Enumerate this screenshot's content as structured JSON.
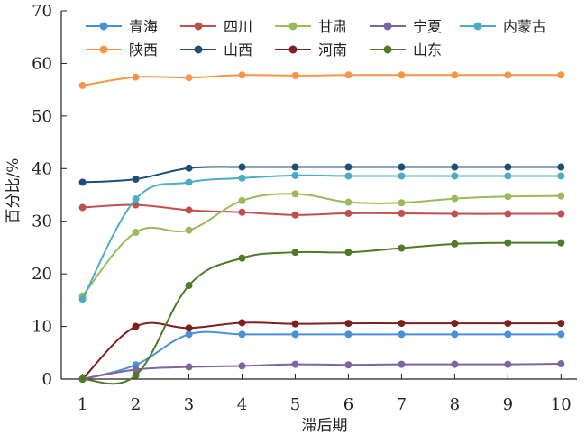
{
  "chart_data": {
    "type": "line",
    "title": "",
    "xlabel": "滞后期",
    "ylabel": "百分比/%",
    "x": [
      1,
      2,
      3,
      4,
      5,
      6,
      7,
      8,
      9,
      10
    ],
    "xlim": [
      0.6,
      10.3
    ],
    "ylim": [
      0,
      70
    ],
    "yticks": [
      0,
      10,
      20,
      30,
      40,
      50,
      60,
      70
    ],
    "xticks": [
      1,
      2,
      3,
      4,
      5,
      6,
      7,
      8,
      9,
      10
    ],
    "grid": false,
    "legend_position": "top",
    "smooth": true,
    "series": [
      {
        "name": "青海",
        "color": "#4a90d9",
        "values": [
          0,
          2.7,
          8.5,
          8.5,
          8.5,
          8.5,
          8.5,
          8.5,
          8.5,
          8.5
        ]
      },
      {
        "name": "四川",
        "color": "#c0504d",
        "values": [
          32.6,
          33.1,
          32.1,
          31.7,
          31.2,
          31.5,
          31.5,
          31.4,
          31.4,
          31.4
        ]
      },
      {
        "name": "甘肃",
        "color": "#9bbb59",
        "values": [
          15.8,
          27.9,
          28.3,
          33.9,
          35.2,
          33.6,
          33.5,
          34.3,
          34.7,
          34.8
        ]
      },
      {
        "name": "宁夏",
        "color": "#8064a2",
        "values": [
          0,
          1.8,
          2.3,
          2.5,
          2.8,
          2.7,
          2.8,
          2.8,
          2.8,
          2.9
        ]
      },
      {
        "name": "内蒙古",
        "color": "#4bacc6",
        "values": [
          15.2,
          34.2,
          37.4,
          38.2,
          38.7,
          38.6,
          38.6,
          38.6,
          38.6,
          38.6
        ]
      },
      {
        "name": "陕西",
        "color": "#f79646",
        "values": [
          55.8,
          57.4,
          57.3,
          57.8,
          57.7,
          57.8,
          57.8,
          57.8,
          57.8,
          57.8
        ]
      },
      {
        "name": "山西",
        "color": "#1f4e79",
        "values": [
          37.4,
          38.0,
          40.1,
          40.3,
          40.3,
          40.3,
          40.3,
          40.3,
          40.3,
          40.3
        ]
      },
      {
        "name": "河南",
        "color": "#7f1f1f",
        "values": [
          0,
          10.0,
          9.7,
          10.7,
          10.5,
          10.6,
          10.6,
          10.6,
          10.6,
          10.6
        ]
      },
      {
        "name": "山东",
        "color": "#4f7a28",
        "values": [
          0,
          0.7,
          17.8,
          23.0,
          24.1,
          24.1,
          24.9,
          25.7,
          25.9,
          25.9
        ]
      }
    ]
  }
}
